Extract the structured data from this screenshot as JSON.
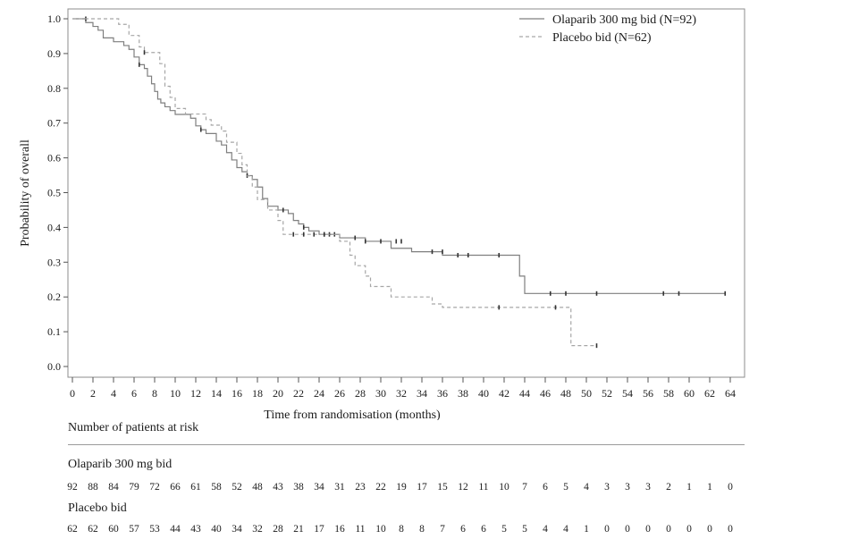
{
  "chart_data": {
    "type": "line",
    "subtype": "kaplan-meier",
    "xlabel": "Time from randomisation (months)",
    "ylabel": "Probability of overall",
    "xlim": [
      0,
      64
    ],
    "ylim": [
      0,
      1.0
    ],
    "x_ticks": [
      "0",
      "2",
      "4",
      "6",
      "8",
      "10",
      "12",
      "14",
      "16",
      "18",
      "20",
      "22",
      "24",
      "26",
      "28",
      "30",
      "32",
      "34",
      "36",
      "38",
      "40",
      "42",
      "44",
      "46",
      "48",
      "50",
      "52",
      "54",
      "56",
      "58",
      "60",
      "62",
      "64"
    ],
    "y_ticks": [
      "0.0",
      "0.1",
      "0.2",
      "0.3",
      "0.4",
      "0.5",
      "0.6",
      "0.7",
      "0.8",
      "0.9",
      "1.0"
    ],
    "grid": false,
    "legend_position": "top-right",
    "series": [
      {
        "name": "Olaparib 300 mg bid (N=92)",
        "style": "solid",
        "color": "#7f7f7f",
        "steps": [
          [
            0,
            1.0
          ],
          [
            1.3,
            0.989
          ],
          [
            2.0,
            0.978
          ],
          [
            2.5,
            0.967
          ],
          [
            3.0,
            0.945
          ],
          [
            4.0,
            0.934
          ],
          [
            5.0,
            0.923
          ],
          [
            5.5,
            0.912
          ],
          [
            6.0,
            0.89
          ],
          [
            6.5,
            0.868
          ],
          [
            7.0,
            0.857
          ],
          [
            7.3,
            0.835
          ],
          [
            7.7,
            0.813
          ],
          [
            8.0,
            0.791
          ],
          [
            8.3,
            0.769
          ],
          [
            8.6,
            0.758
          ],
          [
            9.0,
            0.747
          ],
          [
            9.5,
            0.736
          ],
          [
            10.0,
            0.725
          ],
          [
            11.5,
            0.714
          ],
          [
            12.0,
            0.692
          ],
          [
            12.5,
            0.681
          ],
          [
            13.0,
            0.67
          ],
          [
            14.0,
            0.648
          ],
          [
            14.5,
            0.637
          ],
          [
            15.0,
            0.615
          ],
          [
            15.5,
            0.594
          ],
          [
            16.0,
            0.572
          ],
          [
            16.5,
            0.56
          ],
          [
            17.0,
            0.549
          ],
          [
            17.5,
            0.538
          ],
          [
            18.0,
            0.516
          ],
          [
            18.5,
            0.483
          ],
          [
            19.0,
            0.461
          ],
          [
            20.0,
            0.45
          ],
          [
            21.0,
            0.44
          ],
          [
            21.5,
            0.42
          ],
          [
            22.0,
            0.41
          ],
          [
            22.5,
            0.4
          ],
          [
            23.0,
            0.39
          ],
          [
            24.0,
            0.38
          ],
          [
            26.0,
            0.37
          ],
          [
            27.5,
            0.37
          ],
          [
            28.5,
            0.36
          ],
          [
            31.0,
            0.34
          ],
          [
            33.0,
            0.33
          ],
          [
            36.0,
            0.32
          ],
          [
            43.5,
            0.26
          ],
          [
            44.0,
            0.21
          ],
          [
            63.5,
            0.21
          ]
        ],
        "censored": [
          [
            1.3,
            1.0
          ],
          [
            6.5,
            0.868
          ],
          [
            12.5,
            0.681
          ],
          [
            17.0,
            0.549
          ],
          [
            20.5,
            0.45
          ],
          [
            22.5,
            0.4
          ],
          [
            24.5,
            0.38
          ],
          [
            25.0,
            0.38
          ],
          [
            25.5,
            0.38
          ],
          [
            27.5,
            0.37
          ],
          [
            28.5,
            0.36
          ],
          [
            30.0,
            0.36
          ],
          [
            31.5,
            0.36
          ],
          [
            32.0,
            0.36
          ],
          [
            35.0,
            0.33
          ],
          [
            36.0,
            0.33
          ],
          [
            37.5,
            0.32
          ],
          [
            38.5,
            0.32
          ],
          [
            41.5,
            0.32
          ],
          [
            46.5,
            0.21
          ],
          [
            48.0,
            0.21
          ],
          [
            51.0,
            0.21
          ],
          [
            57.5,
            0.21
          ],
          [
            59.0,
            0.21
          ],
          [
            63.5,
            0.21
          ]
        ]
      },
      {
        "name": "Placebo bid (N=62)",
        "style": "dashed",
        "color": "#a6a6a6",
        "steps": [
          [
            0,
            1.0
          ],
          [
            4.5,
            0.984
          ],
          [
            5.5,
            0.952
          ],
          [
            6.5,
            0.919
          ],
          [
            7.0,
            0.903
          ],
          [
            8.5,
            0.871
          ],
          [
            9.0,
            0.806
          ],
          [
            9.5,
            0.774
          ],
          [
            10.0,
            0.742
          ],
          [
            11.0,
            0.726
          ],
          [
            13.0,
            0.71
          ],
          [
            13.5,
            0.694
          ],
          [
            14.5,
            0.677
          ],
          [
            15.0,
            0.645
          ],
          [
            16.0,
            0.613
          ],
          [
            16.5,
            0.58
          ],
          [
            17.0,
            0.548
          ],
          [
            17.5,
            0.516
          ],
          [
            18.0,
            0.48
          ],
          [
            19.0,
            0.45
          ],
          [
            20.0,
            0.42
          ],
          [
            20.5,
            0.38
          ],
          [
            26.0,
            0.36
          ],
          [
            27.0,
            0.32
          ],
          [
            27.5,
            0.29
          ],
          [
            28.5,
            0.26
          ],
          [
            29.0,
            0.23
          ],
          [
            31.0,
            0.2
          ],
          [
            35.0,
            0.18
          ],
          [
            36.0,
            0.17
          ],
          [
            48.5,
            0.06
          ],
          [
            51.0,
            0.06
          ]
        ],
        "censored": [
          [
            7.0,
            0.903
          ],
          [
            21.5,
            0.38
          ],
          [
            22.5,
            0.38
          ],
          [
            23.5,
            0.38
          ],
          [
            24.5,
            0.38
          ],
          [
            41.5,
            0.17
          ],
          [
            47.0,
            0.17
          ],
          [
            51.0,
            0.06
          ]
        ]
      }
    ]
  },
  "risk_table": {
    "title": "Number of patients at risk",
    "groups": [
      {
        "label": "Olaparib 300 mg bid",
        "counts": [
          "92",
          "88",
          "84",
          "79",
          "72",
          "66",
          "61",
          "58",
          "52",
          "48",
          "43",
          "38",
          "34",
          "31",
          "23",
          "22",
          "19",
          "17",
          "15",
          "12",
          "11",
          "10",
          "7",
          "6",
          "5",
          "4",
          "3",
          "3",
          "3",
          "2",
          "1",
          "1",
          "0"
        ]
      },
      {
        "label": "Placebo bid",
        "counts": [
          "62",
          "62",
          "60",
          "57",
          "53",
          "44",
          "43",
          "40",
          "34",
          "32",
          "28",
          "21",
          "17",
          "16",
          "11",
          "10",
          "8",
          "8",
          "7",
          "6",
          "6",
          "5",
          "5",
          "4",
          "4",
          "1",
          "0",
          "0",
          "0",
          "0",
          "0",
          "0",
          "0"
        ]
      }
    ]
  }
}
